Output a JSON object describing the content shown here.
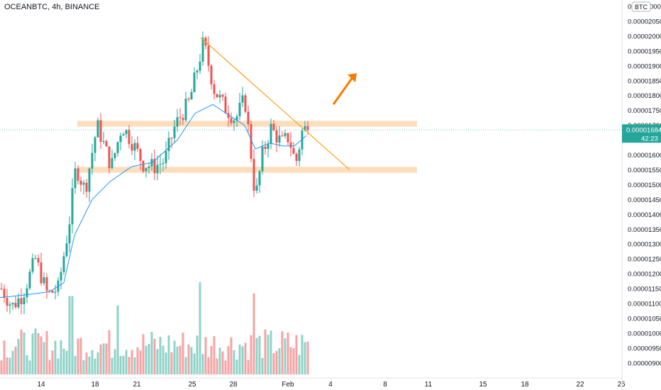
{
  "header": {
    "symbol_title": "OCEANBTC, 4h, BINANCE",
    "currency_badge": "BTC"
  },
  "price_scale": {
    "top_clipped_label": "0.0",
    "top_clipped_label_tail": "000",
    "current_price": "0.00001684",
    "countdown": "42:23",
    "current_price_color": "#26a69a"
  },
  "colors": {
    "up": "#26a69a",
    "down": "#ef5350",
    "ma": "#2196f3",
    "trendline": "#f7a11a",
    "zone": "#fbd3a8",
    "arrow": "#f57c00",
    "volume_up": "#8fd3c8",
    "volume_down": "#f5a3a3"
  },
  "chart_data": {
    "type": "candlestick",
    "title": "OCEANBTC, 4h, BINANCE",
    "y_unit": "BTC",
    "ylim": [
      8.75e-06,
      2.125e-05
    ],
    "yticks": [
      "0.00000900",
      "0.00000950",
      "0.00001000",
      "0.00001050",
      "0.00001100",
      "0.00001150",
      "0.00001200",
      "0.00001250",
      "0.00001300",
      "0.00001350",
      "0.00001400",
      "0.00001450",
      "0.00001500",
      "0.00001550",
      "0.00001600",
      "0.00001650",
      "0.00001700",
      "0.00001750",
      "0.00001800",
      "0.00001850",
      "0.00001900",
      "0.00001950",
      "0.00002000",
      "0.00002050",
      "0.00002100"
    ],
    "xticks": [
      "14",
      "18",
      "21",
      "25",
      "28",
      "Feb",
      "4",
      "8",
      "11",
      "15",
      "18",
      "22",
      "25"
    ],
    "grid": false,
    "current_price": 1.684e-05,
    "countdown": "42:23",
    "resistance_zone": [
      1.695e-05,
      1.715e-05
    ],
    "support_zone": [
      1.54e-05,
      1.56e-05
    ],
    "trendline": [
      {
        "bar": 283,
        "price": 1.995e-05
      },
      {
        "bar": 493,
        "price": 1.55e-05
      }
    ],
    "arrow": {
      "direction": "up",
      "from": {
        "bar": 470,
        "price": 1.77e-05
      },
      "to": {
        "bar": 503,
        "price": 1.875e-05
      }
    },
    "keypoints": [
      {
        "bar": 0,
        "price": 1.15e-05
      },
      {
        "bar": 15,
        "price": 1.09e-05
      },
      {
        "bar": 30,
        "price": 1.13e-05
      },
      {
        "bar": 48,
        "price": 1.25e-05
      },
      {
        "bar": 65,
        "price": 1.13e-05
      },
      {
        "bar": 80,
        "price": 1.15e-05
      },
      {
        "bar": 95,
        "price": 1.36e-05
      },
      {
        "bar": 105,
        "price": 1.56e-05
      },
      {
        "bar": 118,
        "price": 1.48e-05
      },
      {
        "bar": 135,
        "price": 1.7e-05
      },
      {
        "bar": 155,
        "price": 1.56e-05
      },
      {
        "bar": 170,
        "price": 1.7e-05
      },
      {
        "bar": 185,
        "price": 1.64e-05
      },
      {
        "bar": 200,
        "price": 1.57e-05
      },
      {
        "bar": 215,
        "price": 1.56e-05
      },
      {
        "bar": 230,
        "price": 1.58e-05
      },
      {
        "bar": 245,
        "price": 1.7e-05
      },
      {
        "bar": 265,
        "price": 1.78e-05
      },
      {
        "bar": 285,
        "price": 1.98e-05
      },
      {
        "bar": 300,
        "price": 1.82e-05
      },
      {
        "bar": 315,
        "price": 1.76e-05
      },
      {
        "bar": 330,
        "price": 1.72e-05
      },
      {
        "bar": 343,
        "price": 1.79e-05
      },
      {
        "bar": 350,
        "price": 1.65e-05
      },
      {
        "bar": 358,
        "price": 1.45e-05
      },
      {
        "bar": 368,
        "price": 1.6e-05
      },
      {
        "bar": 380,
        "price": 1.69e-05
      },
      {
        "bar": 395,
        "price": 1.64e-05
      },
      {
        "bar": 405,
        "price": 1.66e-05
      },
      {
        "bar": 415,
        "price": 1.57e-05
      },
      {
        "bar": 425,
        "price": 1.69e-05
      },
      {
        "bar": 432,
        "price": 1.684e-05
      }
    ],
    "moving_average": [
      {
        "bar": 0,
        "price": 1.12e-05
      },
      {
        "bar": 40,
        "price": 1.13e-05
      },
      {
        "bar": 70,
        "price": 1.14e-05
      },
      {
        "bar": 90,
        "price": 1.17e-05
      },
      {
        "bar": 105,
        "price": 1.33e-05
      },
      {
        "bar": 130,
        "price": 1.45e-05
      },
      {
        "bar": 155,
        "price": 1.51e-05
      },
      {
        "bar": 185,
        "price": 1.56e-05
      },
      {
        "bar": 215,
        "price": 1.575e-05
      },
      {
        "bar": 250,
        "price": 1.65e-05
      },
      {
        "bar": 275,
        "price": 1.74e-05
      },
      {
        "bar": 300,
        "price": 1.77e-05
      },
      {
        "bar": 325,
        "price": 1.73e-05
      },
      {
        "bar": 345,
        "price": 1.7e-05
      },
      {
        "bar": 360,
        "price": 1.62e-05
      },
      {
        "bar": 380,
        "price": 1.64e-05
      },
      {
        "bar": 400,
        "price": 1.63e-05
      },
      {
        "bar": 415,
        "price": 1.63e-05
      },
      {
        "bar": 432,
        "price": 1.665e-05
      }
    ],
    "volume_peaks": [
      {
        "bar": 98,
        "rel": 0.85
      },
      {
        "bar": 165,
        "rel": 0.75
      },
      {
        "bar": 280,
        "rel": 1.0
      },
      {
        "bar": 355,
        "rel": 0.88
      }
    ]
  }
}
